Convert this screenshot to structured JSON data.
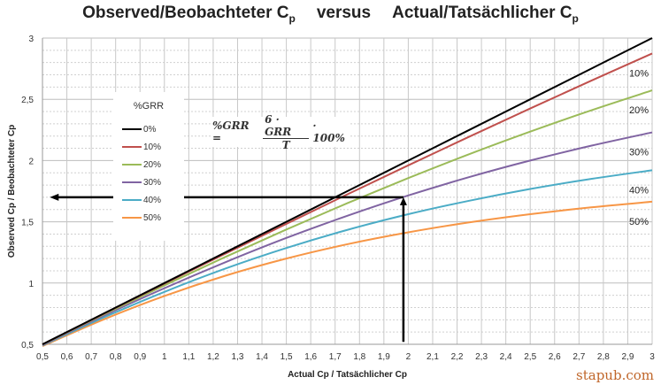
{
  "chart_data": {
    "type": "line",
    "title": {
      "part1": "Observed/Beobachteter C",
      "sub1": "p",
      "middle": "versus",
      "part2": "Actual/Tatsächlicher C",
      "sub2": "p"
    },
    "xlabel": "Actual Cp / Tatsächlicher Cp",
    "ylabel": "Observed Cp / Beobachteter Cp",
    "xlim": [
      0.5,
      3
    ],
    "ylim": [
      0.5,
      3
    ],
    "grid": true,
    "x_ticks": [
      "0,5",
      "0,6",
      "0,7",
      "0,8",
      "0,9",
      "1",
      "1,1",
      "1,2",
      "1,3",
      "1,4",
      "1,5",
      "1,6",
      "1,7",
      "1,8",
      "1,9",
      "2",
      "2,1",
      "2,2",
      "2,3",
      "2,4",
      "2,5",
      "2,6",
      "2,7",
      "2,8",
      "2,9",
      "3"
    ],
    "y_ticks": [
      {
        "v": 0.5,
        "label": "0,5"
      },
      {
        "v": 1,
        "label": "1"
      },
      {
        "v": 1.5,
        "label": "1,5"
      },
      {
        "v": 2,
        "label": "2"
      },
      {
        "v": 2.5,
        "label": "2,5"
      },
      {
        "v": 3,
        "label": "3"
      }
    ],
    "legend_title": "%GRR",
    "legend_placement": "left",
    "x": [
      0.5,
      0.75,
      1,
      1.25,
      1.5,
      1.75,
      2,
      2.25,
      2.5,
      2.75,
      3
    ],
    "series": [
      {
        "name": "0%",
        "color": "#000000",
        "end_label": "",
        "values": [
          0.5,
          0.75,
          1,
          1.25,
          1.5,
          1.75,
          2,
          2.25,
          2.5,
          2.75,
          3
        ]
      },
      {
        "name": "10%",
        "color": "#c0504d",
        "end_label": "10%",
        "values": [
          0.499,
          0.748,
          0.995,
          1.24,
          1.483,
          1.724,
          1.961,
          2.195,
          2.425,
          2.652,
          2.874
        ]
      },
      {
        "name": "20%",
        "color": "#9bbb59",
        "end_label": "20%",
        "values": [
          0.498,
          0.742,
          0.981,
          1.213,
          1.437,
          1.652,
          1.857,
          2.052,
          2.236,
          2.41,
          2.573
        ]
      },
      {
        "name": "30%",
        "color": "#8064a2",
        "end_label": "30%",
        "values": [
          0.494,
          0.732,
          0.958,
          1.17,
          1.368,
          1.549,
          1.715,
          1.865,
          2.0,
          2.121,
          2.23
        ]
      },
      {
        "name": "40%",
        "color": "#4bacc6",
        "end_label": "40%",
        "values": [
          0.49,
          0.718,
          0.928,
          1.118,
          1.286,
          1.434,
          1.562,
          1.672,
          1.768,
          1.85,
          1.921
        ]
      },
      {
        "name": "50%",
        "color": "#f79646",
        "end_label": "50%",
        "values": [
          0.485,
          0.702,
          0.894,
          1.06,
          1.2,
          1.317,
          1.414,
          1.495,
          1.562,
          1.618,
          1.664
        ]
      }
    ],
    "annotations": {
      "formula": {
        "lhs": "%GRR =",
        "num": "6 · GRR",
        "den": "T",
        "rhs": "· 100%"
      },
      "arrow_vertical": {
        "x": 1.98,
        "from_y": 0.52,
        "to_y": 1.7
      },
      "arrow_horizontal": {
        "y": 1.7,
        "from_x": 1.98,
        "to_x": 0.53
      }
    }
  },
  "watermark": "stapub.com"
}
